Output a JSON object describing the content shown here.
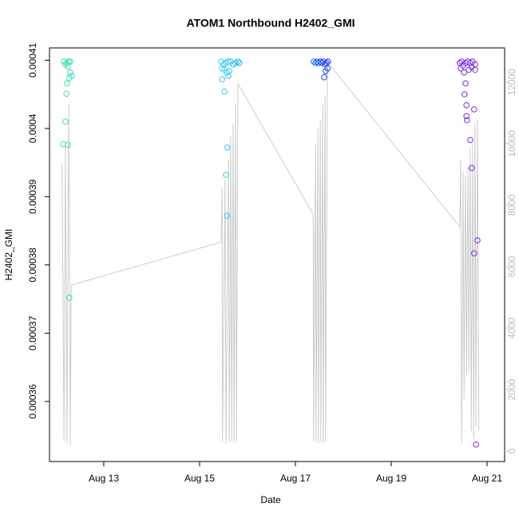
{
  "chart_data": {
    "type": "scatter",
    "title": "ATOM1 Northbound H2402_GMI",
    "x_label": "Date",
    "y_label": "H2402_GMI",
    "xlim": [
      11.867,
      21.367
    ],
    "xticks": [
      {
        "value": 13,
        "label": "Aug 13"
      },
      {
        "value": 15,
        "label": "Aug 15"
      },
      {
        "value": 17,
        "label": "Aug 17"
      },
      {
        "value": 19,
        "label": "Aug 19"
      },
      {
        "value": 21,
        "label": "Aug 21"
      }
    ],
    "ylim": [
      0.0003512,
      0.0004118
    ],
    "yticks": [
      0.00036,
      0.00037,
      0.00038,
      0.00039,
      0.0004,
      0.00041
    ],
    "y2lim": [
      -338,
      13117
    ],
    "y2ticks": [
      0,
      2000,
      4000,
      6000,
      8000,
      10000,
      12000
    ],
    "y2_color": "#bbbbbb",
    "series": [
      {
        "type": "scatter",
        "x": [
          12.17,
          12.2,
          12.23,
          12.27,
          12.3,
          12.25,
          12.3,
          12.28,
          12.33,
          12.23,
          12.22,
          12.2,
          12.15,
          12.25,
          12.28,
          15.45,
          15.5,
          15.55,
          15.6,
          15.65,
          15.7,
          15.75,
          15.8,
          15.83,
          15.47,
          15.52,
          15.57,
          15.62,
          15.6,
          15.47,
          15.52,
          15.58,
          15.55,
          15.57,
          17.38,
          17.42,
          17.45,
          17.48,
          17.52,
          17.55,
          17.58,
          17.62,
          17.65,
          17.68,
          17.67,
          17.63,
          17.6,
          20.43,
          20.47,
          20.5,
          20.55,
          20.6,
          20.65,
          20.7,
          20.75,
          20.45,
          20.52,
          20.62,
          20.68,
          20.75,
          20.55,
          20.53,
          20.57,
          20.57,
          20.58,
          20.65,
          20.68,
          20.73,
          20.73,
          20.8,
          20.77
        ],
        "values": [
          0.0004098,
          0.0004094,
          0.0004096,
          0.0004098,
          0.0004098,
          0.0004091,
          0.0004082,
          0.0004074,
          0.0004077,
          0.0004066,
          0.0004051,
          0.000401,
          0.0003977,
          0.0003976,
          0.0003752,
          0.0004098,
          0.0004094,
          0.0004096,
          0.0004098,
          0.0004098,
          0.0004094,
          0.0004096,
          0.0004098,
          0.0004096,
          0.0004088,
          0.0004086,
          0.0004082,
          0.0004084,
          0.0004077,
          0.0004072,
          0.0004054,
          0.0003972,
          0.0003932,
          0.0003872,
          0.0004098,
          0.0004096,
          0.0004098,
          0.0004096,
          0.0004098,
          0.0004096,
          0.0004098,
          0.0004094,
          0.0004096,
          0.0004098,
          0.0004088,
          0.0004084,
          0.0004075,
          0.0004096,
          0.0004098,
          0.0004092,
          0.0004096,
          0.0004098,
          0.0004096,
          0.0004098,
          0.0004094,
          0.0004088,
          0.0004082,
          0.0004086,
          0.000409,
          0.0004086,
          0.0004066,
          0.000405,
          0.0004034,
          0.0004018,
          0.0004012,
          0.0003983,
          0.0003942,
          0.0004028,
          0.0003817,
          0.0003836,
          0.0003537
        ],
        "colors": [
          "#3ee3a0",
          "#3ee3a0",
          "#3ee3a8",
          "#3ee0b4",
          "#3edcc0",
          "#3ee0b0",
          "#3edcc0",
          "#3ee0b8",
          "#3ed8cc",
          "#3ee3a8",
          "#3ee3a4",
          "#3ee3a0",
          "#3ee69a",
          "#3ee0b0",
          "#3ee0b4",
          "#33d0ee",
          "#33cdf0",
          "#33caf0",
          "#33c6f2",
          "#33c2f2",
          "#33bef4",
          "#33baf4",
          "#33b6f6",
          "#33b2f6",
          "#33d0ee",
          "#33cdf0",
          "#33c8f0",
          "#33c4f2",
          "#33c6f2",
          "#33d0ee",
          "#33cdf0",
          "#33c8f0",
          "#33caf0",
          "#33c8f0",
          "#1a6cff",
          "#1a66ff",
          "#1a60ff",
          "#1a5aff",
          "#1a54ff",
          "#1a4eff",
          "#1a48ff",
          "#1f42fc",
          "#2440f8",
          "#2a3cf4",
          "#2a3cf4",
          "#1f42fc",
          "#1a48ff",
          "#6a2ef0",
          "#6e2eec",
          "#722eea",
          "#762ee6",
          "#7a2ee4",
          "#7e2ee2",
          "#822ee0",
          "#862ede",
          "#6c2eee",
          "#742ee8",
          "#7c2ee4",
          "#802ee2",
          "#862ede",
          "#762ee6",
          "#742ee8",
          "#782ee6",
          "#782ee6",
          "#7a2ee4",
          "#7e2ee2",
          "#802ee2",
          "#842ee0",
          "#842ee0",
          "#882edc",
          "#862ede"
        ]
      },
      {
        "type": "line",
        "axis": "y2",
        "color": "#cccccc",
        "x": [
          12.13,
          12.17,
          12.2,
          12.23,
          12.27,
          12.3,
          12.32,
          15.45,
          15.47,
          15.48,
          15.53,
          15.55,
          15.6,
          15.62,
          15.65,
          15.67,
          15.7,
          15.72,
          15.75,
          15.77,
          15.8,
          17.37,
          17.38,
          17.42,
          17.43,
          17.47,
          17.48,
          17.52,
          17.53,
          17.57,
          17.58,
          17.62,
          17.63,
          17.67,
          17.7,
          20.43,
          20.45,
          20.47,
          20.5,
          20.52,
          20.55,
          20.57,
          20.6,
          20.62,
          20.65,
          20.67,
          20.7,
          20.72,
          20.75,
          20.77,
          20.8,
          20.83
        ],
        "values": [
          9350,
          312,
          10000,
          260,
          11300,
          182,
          5400,
          6800,
          8570,
          312,
          8830,
          260,
          9480,
          312,
          10260,
          312,
          10650,
          260,
          11300,
          312,
          11950,
          7710,
          312,
          10000,
          312,
          10520,
          260,
          10780,
          312,
          11300,
          260,
          11560,
          312,
          12730,
          12600,
          7300,
          9480,
          260,
          9090,
          1690,
          8960,
          2470,
          9220,
          2600,
          9870,
          650,
          10000,
          390,
          10650,
          780,
          10780,
          700
        ]
      }
    ]
  }
}
